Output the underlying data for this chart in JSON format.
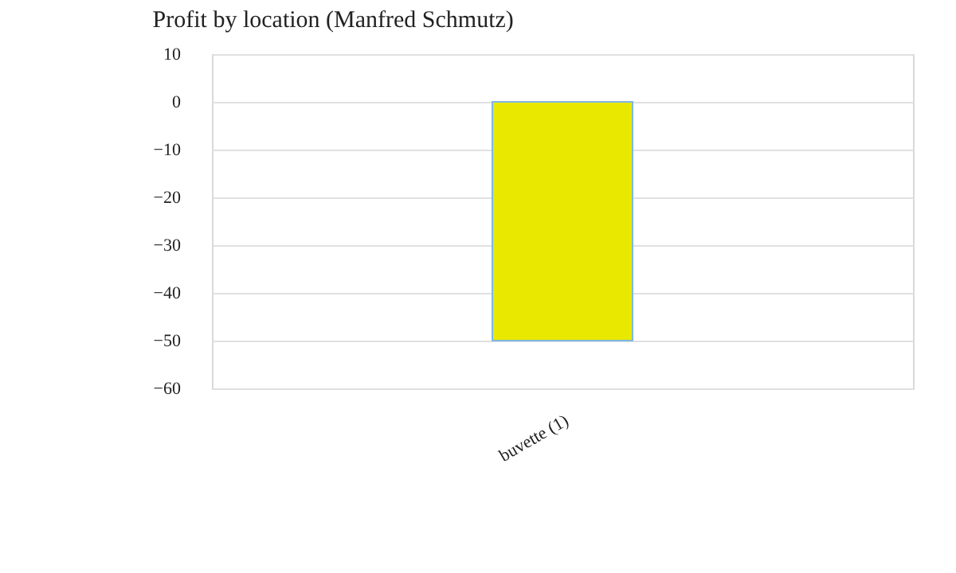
{
  "chart_data": {
    "type": "bar",
    "title": "Profit by location  (Manfred Schmutz)",
    "categories": [
      "buvette (1)"
    ],
    "series": [
      {
        "color": "#e8e800",
        "values": [
          -50
        ]
      }
    ],
    "ylim": [
      -60,
      10
    ],
    "yticks": [
      10,
      0,
      -10,
      -20,
      -30,
      -40,
      -50,
      -60
    ],
    "grid": "y"
  }
}
